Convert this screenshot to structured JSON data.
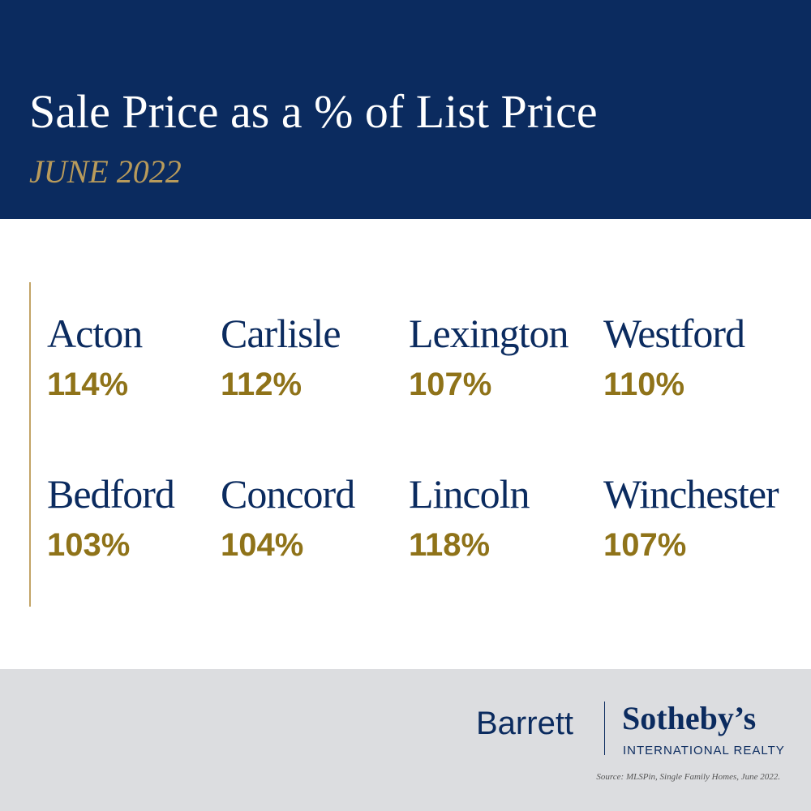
{
  "header": {
    "title": "Sale Price as a % of List Price",
    "subtitle": "JUNE 2022"
  },
  "towns": [
    {
      "name": "Acton",
      "value": "114%"
    },
    {
      "name": "Carlisle",
      "value": "112%"
    },
    {
      "name": "Lexington",
      "value": "107%"
    },
    {
      "name": "Westford",
      "value": "110%"
    },
    {
      "name": "Bedford",
      "value": "103%"
    },
    {
      "name": "Concord",
      "value": "104%"
    },
    {
      "name": "Lincoln",
      "value": "118%"
    },
    {
      "name": "Winchester",
      "value": "107%"
    }
  ],
  "footer": {
    "brand": "Barrett",
    "brand_partner": "Sotheby’s",
    "brand_tagline": "INTERNATIONAL REALTY",
    "source": "Source: MLSPin, Single Family Homes, June 2022."
  }
}
